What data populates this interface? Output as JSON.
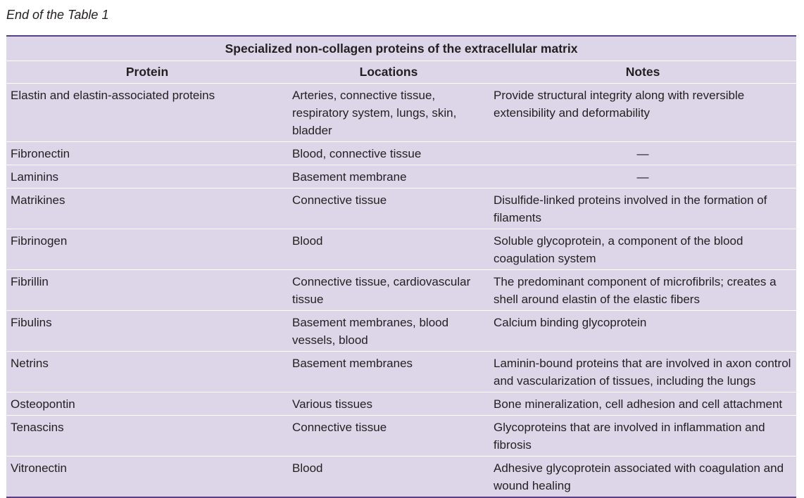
{
  "caption": "End of the Table 1",
  "table": {
    "title": "Specialized non-collagen proteins of the extracellular matrix",
    "columns": [
      "Protein",
      "Locations",
      "Notes"
    ],
    "rows": [
      {
        "protein": "Elastin and elastin-associated proteins",
        "locations": "Arteries, connective tissue, respiratory system, lungs, skin, bladder",
        "notes": "Provide structural integrity along with reversible extensibility and deformability"
      },
      {
        "protein": "Fibronectin",
        "locations": "Blood, connective tissue",
        "notes": "—"
      },
      {
        "protein": "Laminins",
        "locations": "Basement membrane",
        "notes": "—"
      },
      {
        "protein": "Matrikines",
        "locations": "Connective tissue",
        "notes": "Disulfide-linked proteins involved in the formation of filaments"
      },
      {
        "protein": "Fibrinogen",
        "locations": "Blood",
        "notes": "Soluble glycoprotein, a component of the blood coagulation system"
      },
      {
        "protein": "Fibrillin",
        "locations": "Connective tissue, cardiovascular tissue",
        "notes": "The predominant component of microfibrils; creates a shell around elastin of the elastic fibers"
      },
      {
        "protein": "Fibulins",
        "locations": "Basement membranes, blood vessels, blood",
        "notes": "Calcium binding glycoprotein"
      },
      {
        "protein": "Netrins",
        "locations": "Basement membranes",
        "notes": "Laminin-bound proteins that are involved in axon control and vascularization of tissues, including the lungs"
      },
      {
        "protein": "Osteopontin",
        "locations": "Various tissues",
        "notes": "Bone mineralization, cell adhesion and cell attachment"
      },
      {
        "protein": "Tenascins",
        "locations": "Connective tissue",
        "notes": "Glycoproteins that are involved in inflammation and fibrosis"
      },
      {
        "protein": "Vitronectin",
        "locations": "Blood",
        "notes": "Adhesive glycoprotein associated with coagulation and wound healing"
      }
    ]
  },
  "colors": {
    "table_background": "#dcd6e8",
    "rule": "#5b3f86",
    "text": "#231f20"
  }
}
